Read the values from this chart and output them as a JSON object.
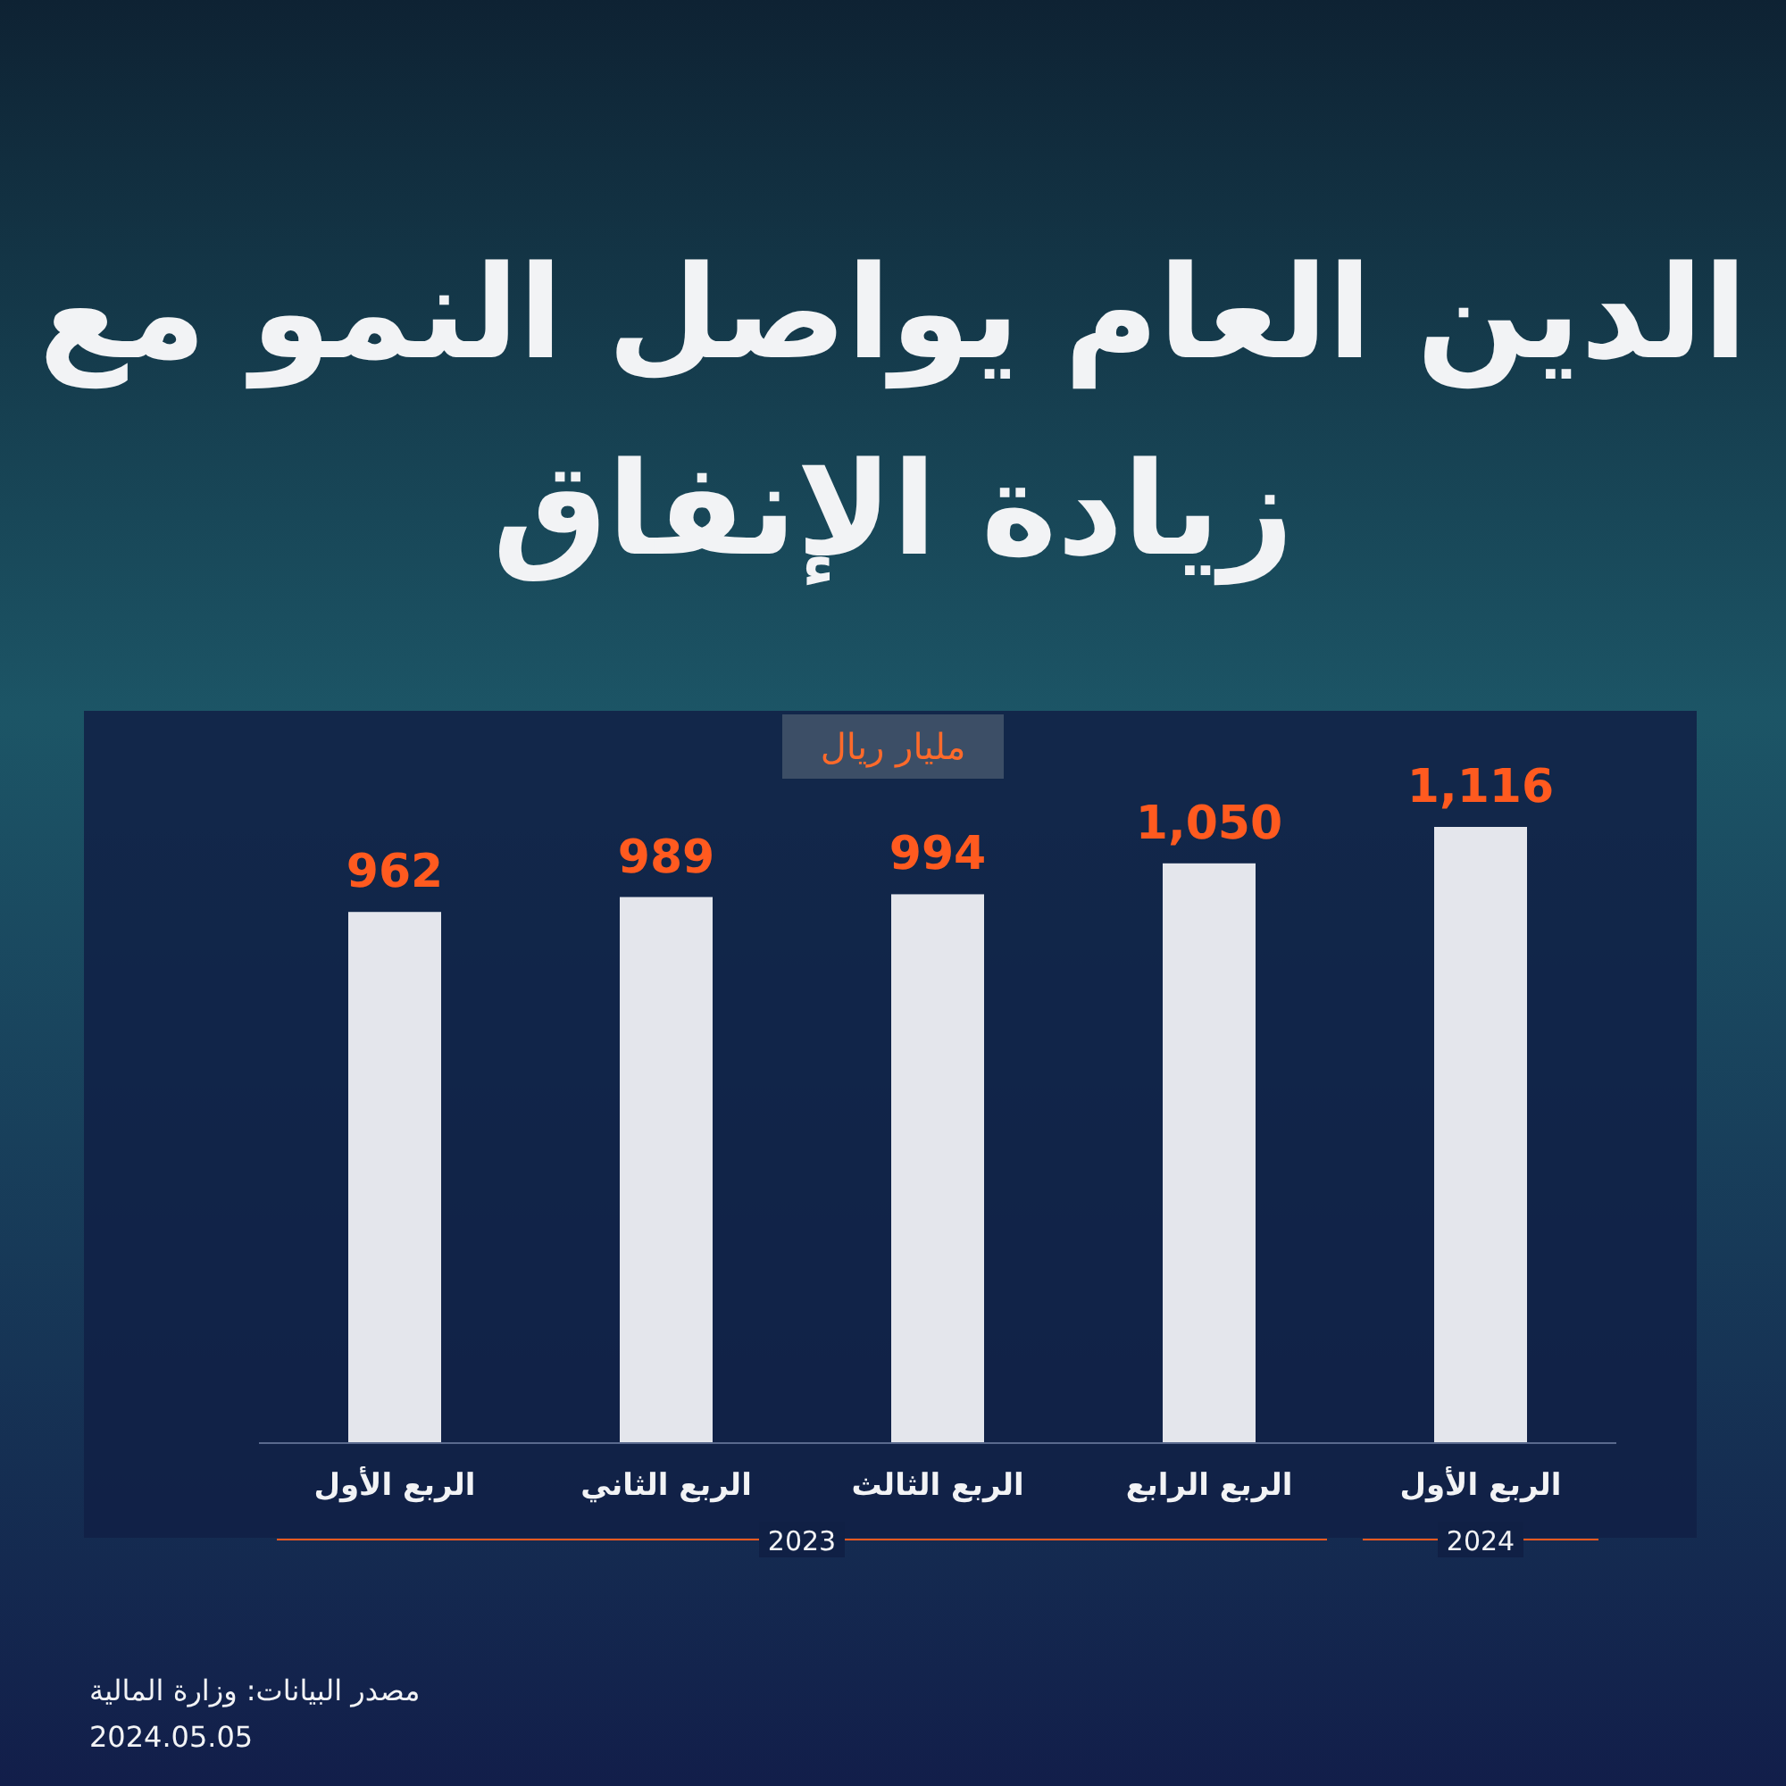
{
  "chart_data": {
    "type": "bar",
    "title": "الدين العام يواصل النمو مع زيادة الإنفاق",
    "ylabel": "مليار ريال",
    "categories": [
      "الربع الأول",
      "الربع الثاني",
      "الربع الثالث",
      "الربع الرابع",
      "الربع الأول"
    ],
    "values": [
      962,
      989,
      994,
      1050,
      1116
    ],
    "value_labels": [
      "962",
      "989",
      "994",
      "1,050",
      "1,116"
    ],
    "color": "#e4e6ec",
    "annotations": [
      "2023",
      "2024",
      "مصدر البيانات: وزارة المالية",
      "2024.05.05"
    ]
  }
}
